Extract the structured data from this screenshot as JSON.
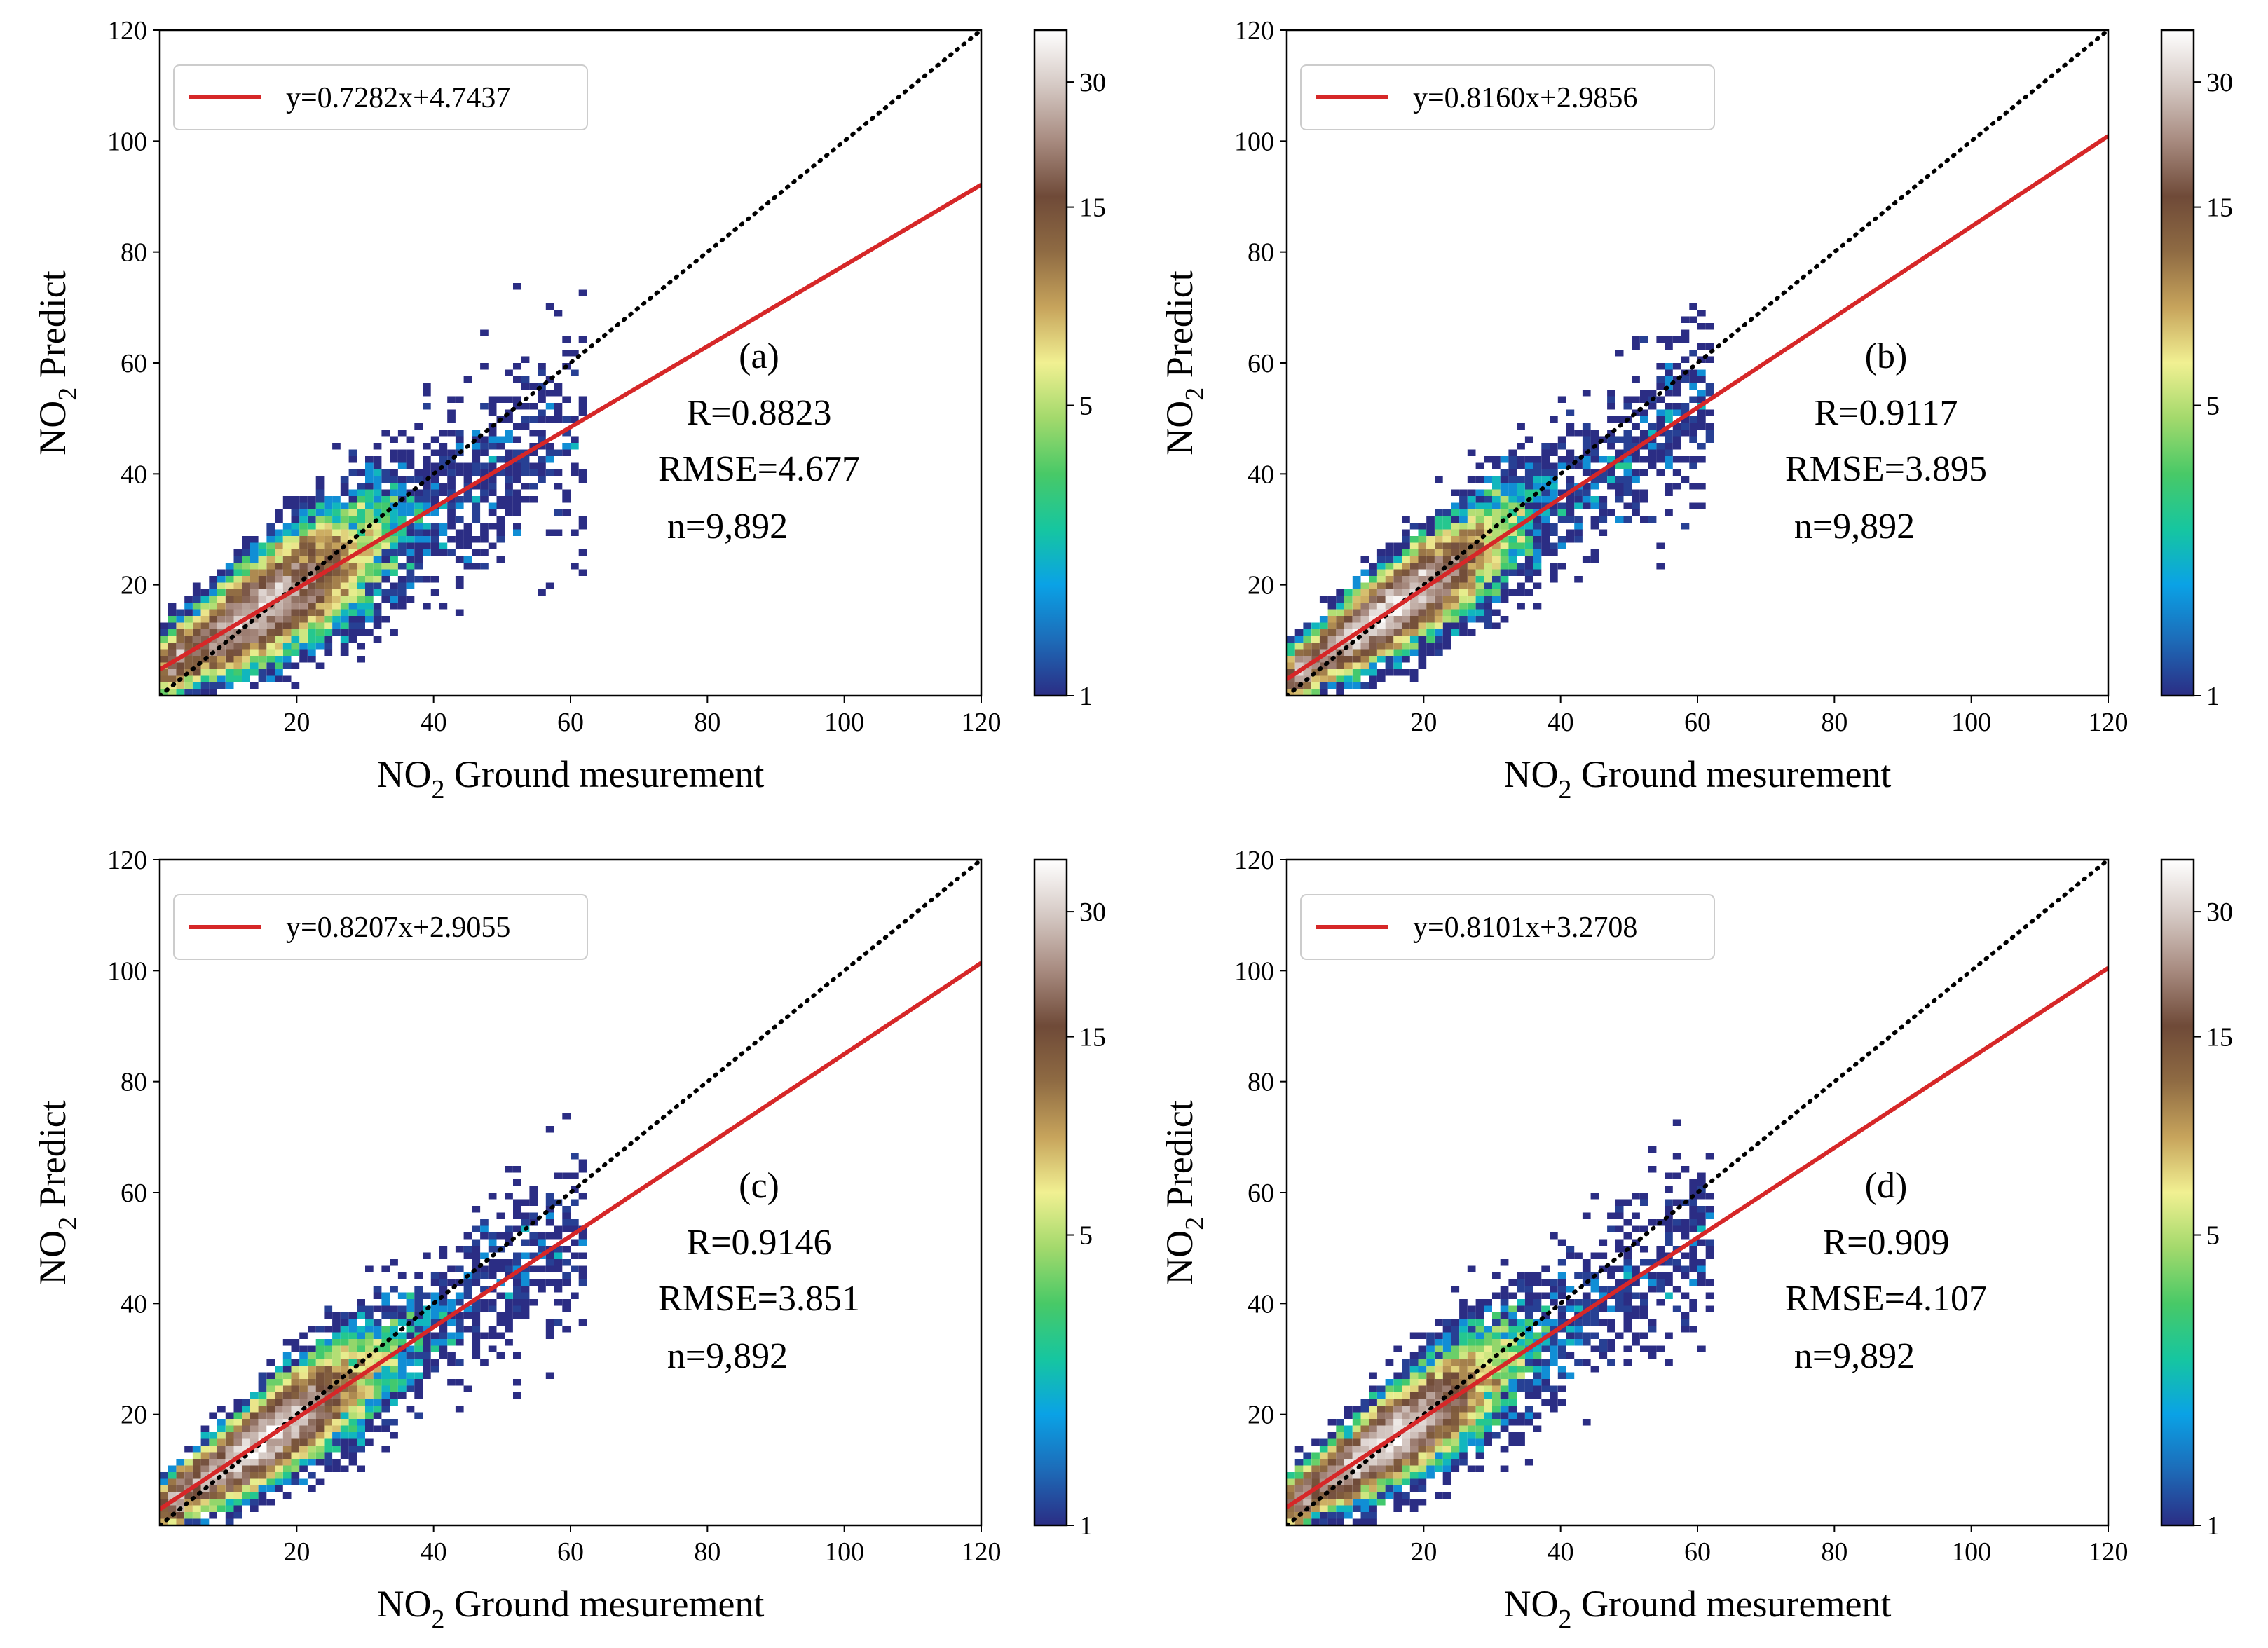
{
  "figure": {
    "colorbar": {
      "ticks": [
        1,
        5,
        15,
        30
      ],
      "min": 1,
      "max": 40,
      "scale": "log",
      "colors": [
        "#2b2d84",
        "#1d6bb8",
        "#0aa2e6",
        "#16c6a0",
        "#48c967",
        "#a3d96c",
        "#f1f092",
        "#c7a45c",
        "#8f6b43",
        "#6f4a38",
        "#a78a7f",
        "#d5c9c4",
        "#ffffff"
      ]
    },
    "identity_line_color": "#000000",
    "fit_line_color": "#d62728"
  },
  "chart_data": [
    {
      "type": "scatter",
      "panel": "(a)",
      "xlabel": {
        "main": "NO",
        "sub": "2",
        "rest": " Ground mesurement"
      },
      "ylabel": {
        "main": "NO",
        "sub": "2",
        "rest": " Predict"
      },
      "xlim": [
        0,
        120
      ],
      "ylim": [
        0,
        120
      ],
      "xticks": [
        20,
        40,
        60,
        80,
        100,
        120
      ],
      "yticks": [
        20,
        40,
        60,
        80,
        100,
        120
      ],
      "fit": {
        "slope": 0.7282,
        "intercept": 4.7437
      },
      "legend": "y=0.7282x+4.7437",
      "stats": {
        "r": "R=0.8823",
        "rmse": "RMSE=4.677",
        "n": "n=9,892"
      },
      "spread": 4.7
    },
    {
      "type": "scatter",
      "panel": "(b)",
      "xlabel": {
        "main": "NO",
        "sub": "2",
        "rest": " Ground mesurement"
      },
      "ylabel": {
        "main": "NO",
        "sub": "2",
        "rest": " Predict"
      },
      "xlim": [
        0,
        120
      ],
      "ylim": [
        0,
        120
      ],
      "xticks": [
        20,
        40,
        60,
        80,
        100,
        120
      ],
      "yticks": [
        20,
        40,
        60,
        80,
        100,
        120
      ],
      "fit": {
        "slope": 0.816,
        "intercept": 2.9856
      },
      "legend": "y=0.8160x+2.9856",
      "stats": {
        "r": "R=0.9117",
        "rmse": "RMSE=3.895",
        "n": "n=9,892"
      },
      "spread": 3.9
    },
    {
      "type": "scatter",
      "panel": "(c)",
      "xlabel": {
        "main": "NO",
        "sub": "2",
        "rest": " Ground mesurement"
      },
      "ylabel": {
        "main": "NO",
        "sub": "2",
        "rest": " Predict"
      },
      "xlim": [
        0,
        120
      ],
      "ylim": [
        0,
        120
      ],
      "xticks": [
        20,
        40,
        60,
        80,
        100,
        120
      ],
      "yticks": [
        20,
        40,
        60,
        80,
        100,
        120
      ],
      "fit": {
        "slope": 0.8207,
        "intercept": 2.9055
      },
      "legend": "y=0.8207x+2.9055",
      "stats": {
        "r": "R=0.9146",
        "rmse": "RMSE=3.851",
        "n": "n=9,892"
      },
      "spread": 3.85
    },
    {
      "type": "scatter",
      "panel": "(d)",
      "xlabel": {
        "main": "NO",
        "sub": "2",
        "rest": " Ground mesurement"
      },
      "ylabel": {
        "main": "NO",
        "sub": "2",
        "rest": " Predict"
      },
      "xlim": [
        0,
        120
      ],
      "ylim": [
        0,
        120
      ],
      "xticks": [
        20,
        40,
        60,
        80,
        100,
        120
      ],
      "yticks": [
        20,
        40,
        60,
        80,
        100,
        120
      ],
      "fit": {
        "slope": 0.8101,
        "intercept": 3.2708
      },
      "legend": "y=0.8101x+3.2708",
      "stats": {
        "r": "R=0.909",
        "rmse": "RMSE=4.107",
        "n": "n=9,892"
      },
      "spread": 4.1
    }
  ]
}
